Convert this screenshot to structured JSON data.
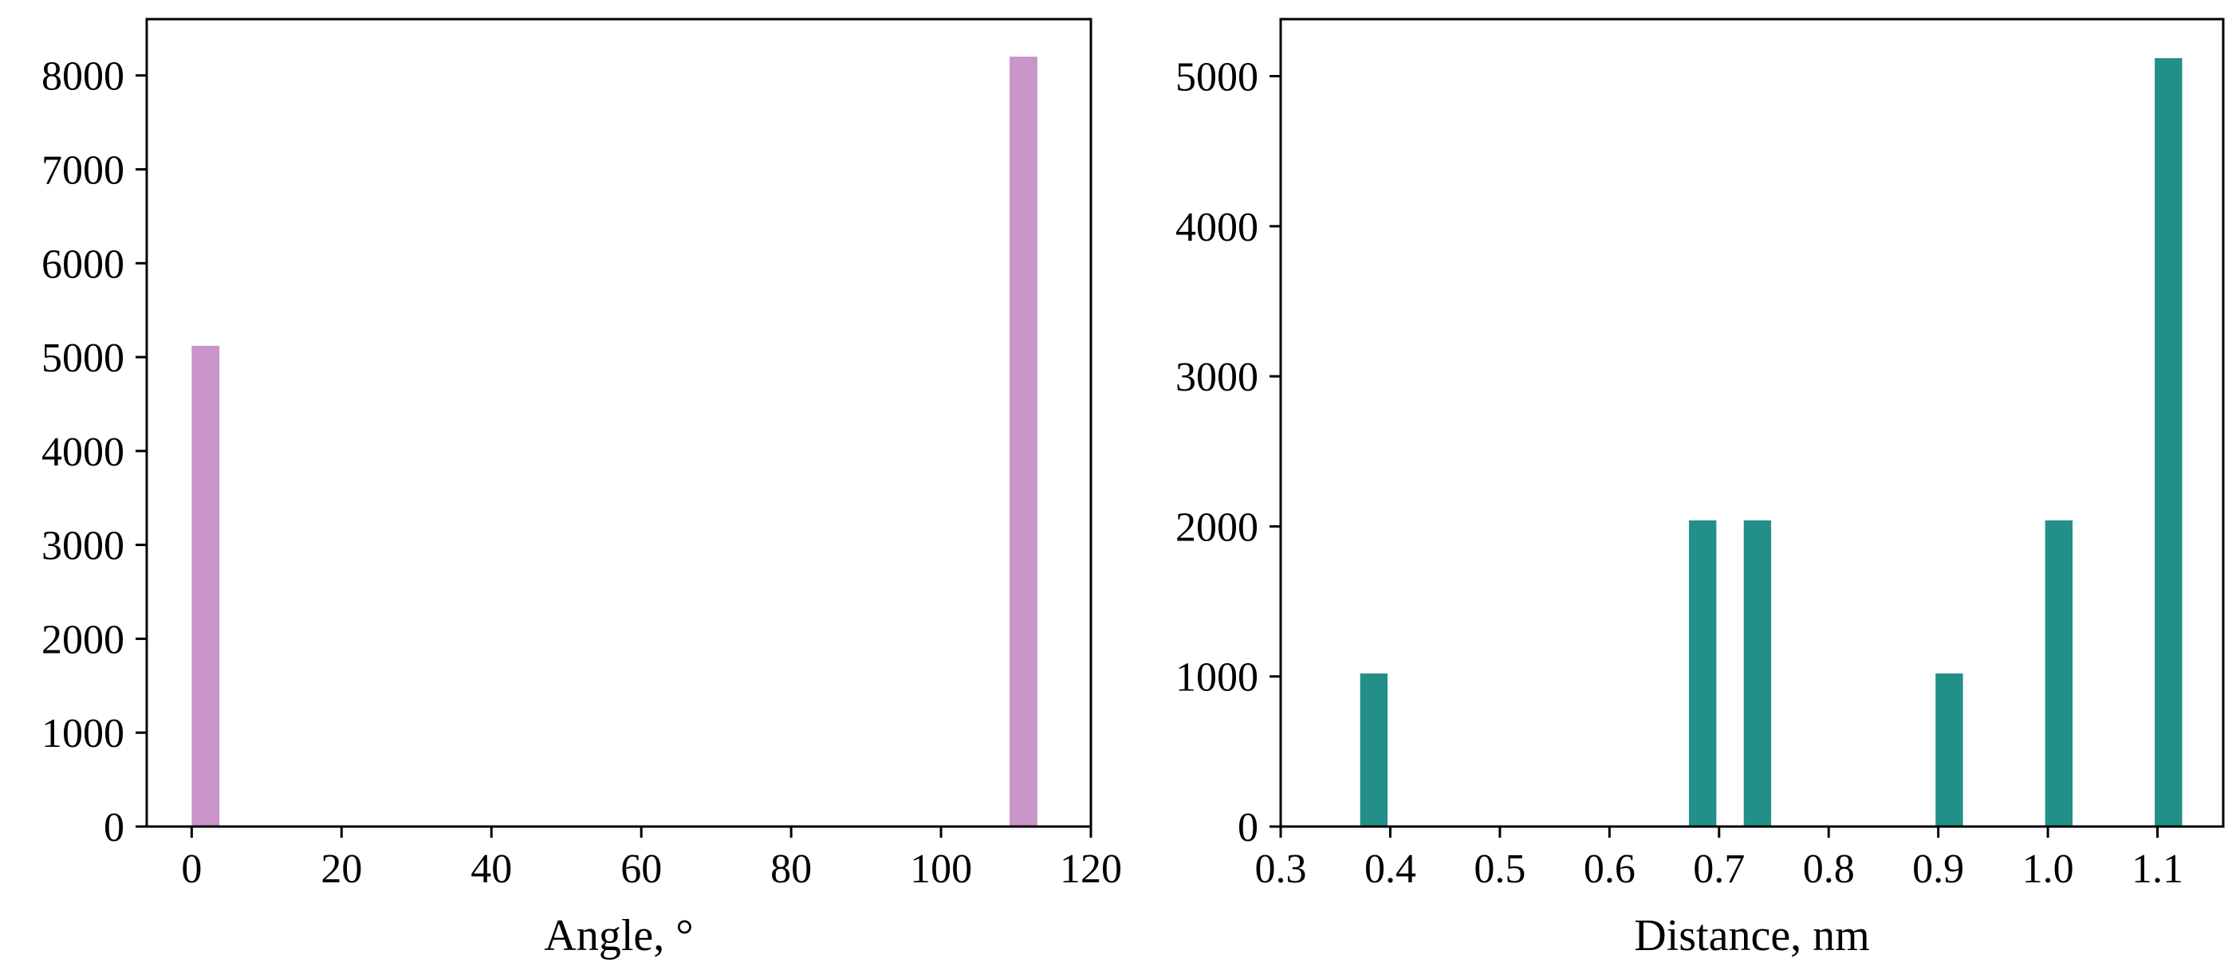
{
  "chart_data": [
    {
      "type": "bar",
      "xlabel": "Angle, °",
      "ylabel": "",
      "xlim": [
        -6,
        120
      ],
      "ylim": [
        0,
        8600
      ],
      "xticks": [
        0,
        20,
        40,
        60,
        80,
        100,
        120
      ],
      "xtick_labels": [
        "0",
        "20",
        "40",
        "60",
        "80",
        "100",
        "120"
      ],
      "yticks": [
        0,
        1000,
        2000,
        3000,
        4000,
        5000,
        6000,
        7000,
        8000
      ],
      "ytick_labels": [
        "0",
        "1000",
        "2000",
        "3000",
        "4000",
        "5000",
        "6000",
        "7000",
        "8000"
      ],
      "bin_width": 3.7,
      "x": [
        1.85,
        111.0
      ],
      "values": [
        5120,
        8200
      ],
      "color": "#c994c7",
      "grid": false
    },
    {
      "type": "bar",
      "xlabel": "Distance, nm",
      "ylabel": "",
      "xlim": [
        0.3,
        1.16
      ],
      "ylim": [
        0,
        5380
      ],
      "xticks": [
        0.3,
        0.4,
        0.5,
        0.6,
        0.7,
        0.8,
        0.9,
        1.0,
        1.1
      ],
      "xtick_labels": [
        "0.3",
        "0.4",
        "0.5",
        "0.6",
        "0.7",
        "0.8",
        "0.9",
        "1.0",
        "1.1"
      ],
      "yticks": [
        0,
        1000,
        2000,
        3000,
        4000,
        5000
      ],
      "ytick_labels": [
        "0",
        "1000",
        "2000",
        "3000",
        "4000",
        "5000"
      ],
      "bin_width": 0.025,
      "x": [
        0.385,
        0.685,
        0.735,
        0.91,
        1.01,
        1.11
      ],
      "values": [
        1020,
        2040,
        2040,
        1020,
        2040,
        5120
      ],
      "color": "#238f89",
      "grid": false
    }
  ]
}
